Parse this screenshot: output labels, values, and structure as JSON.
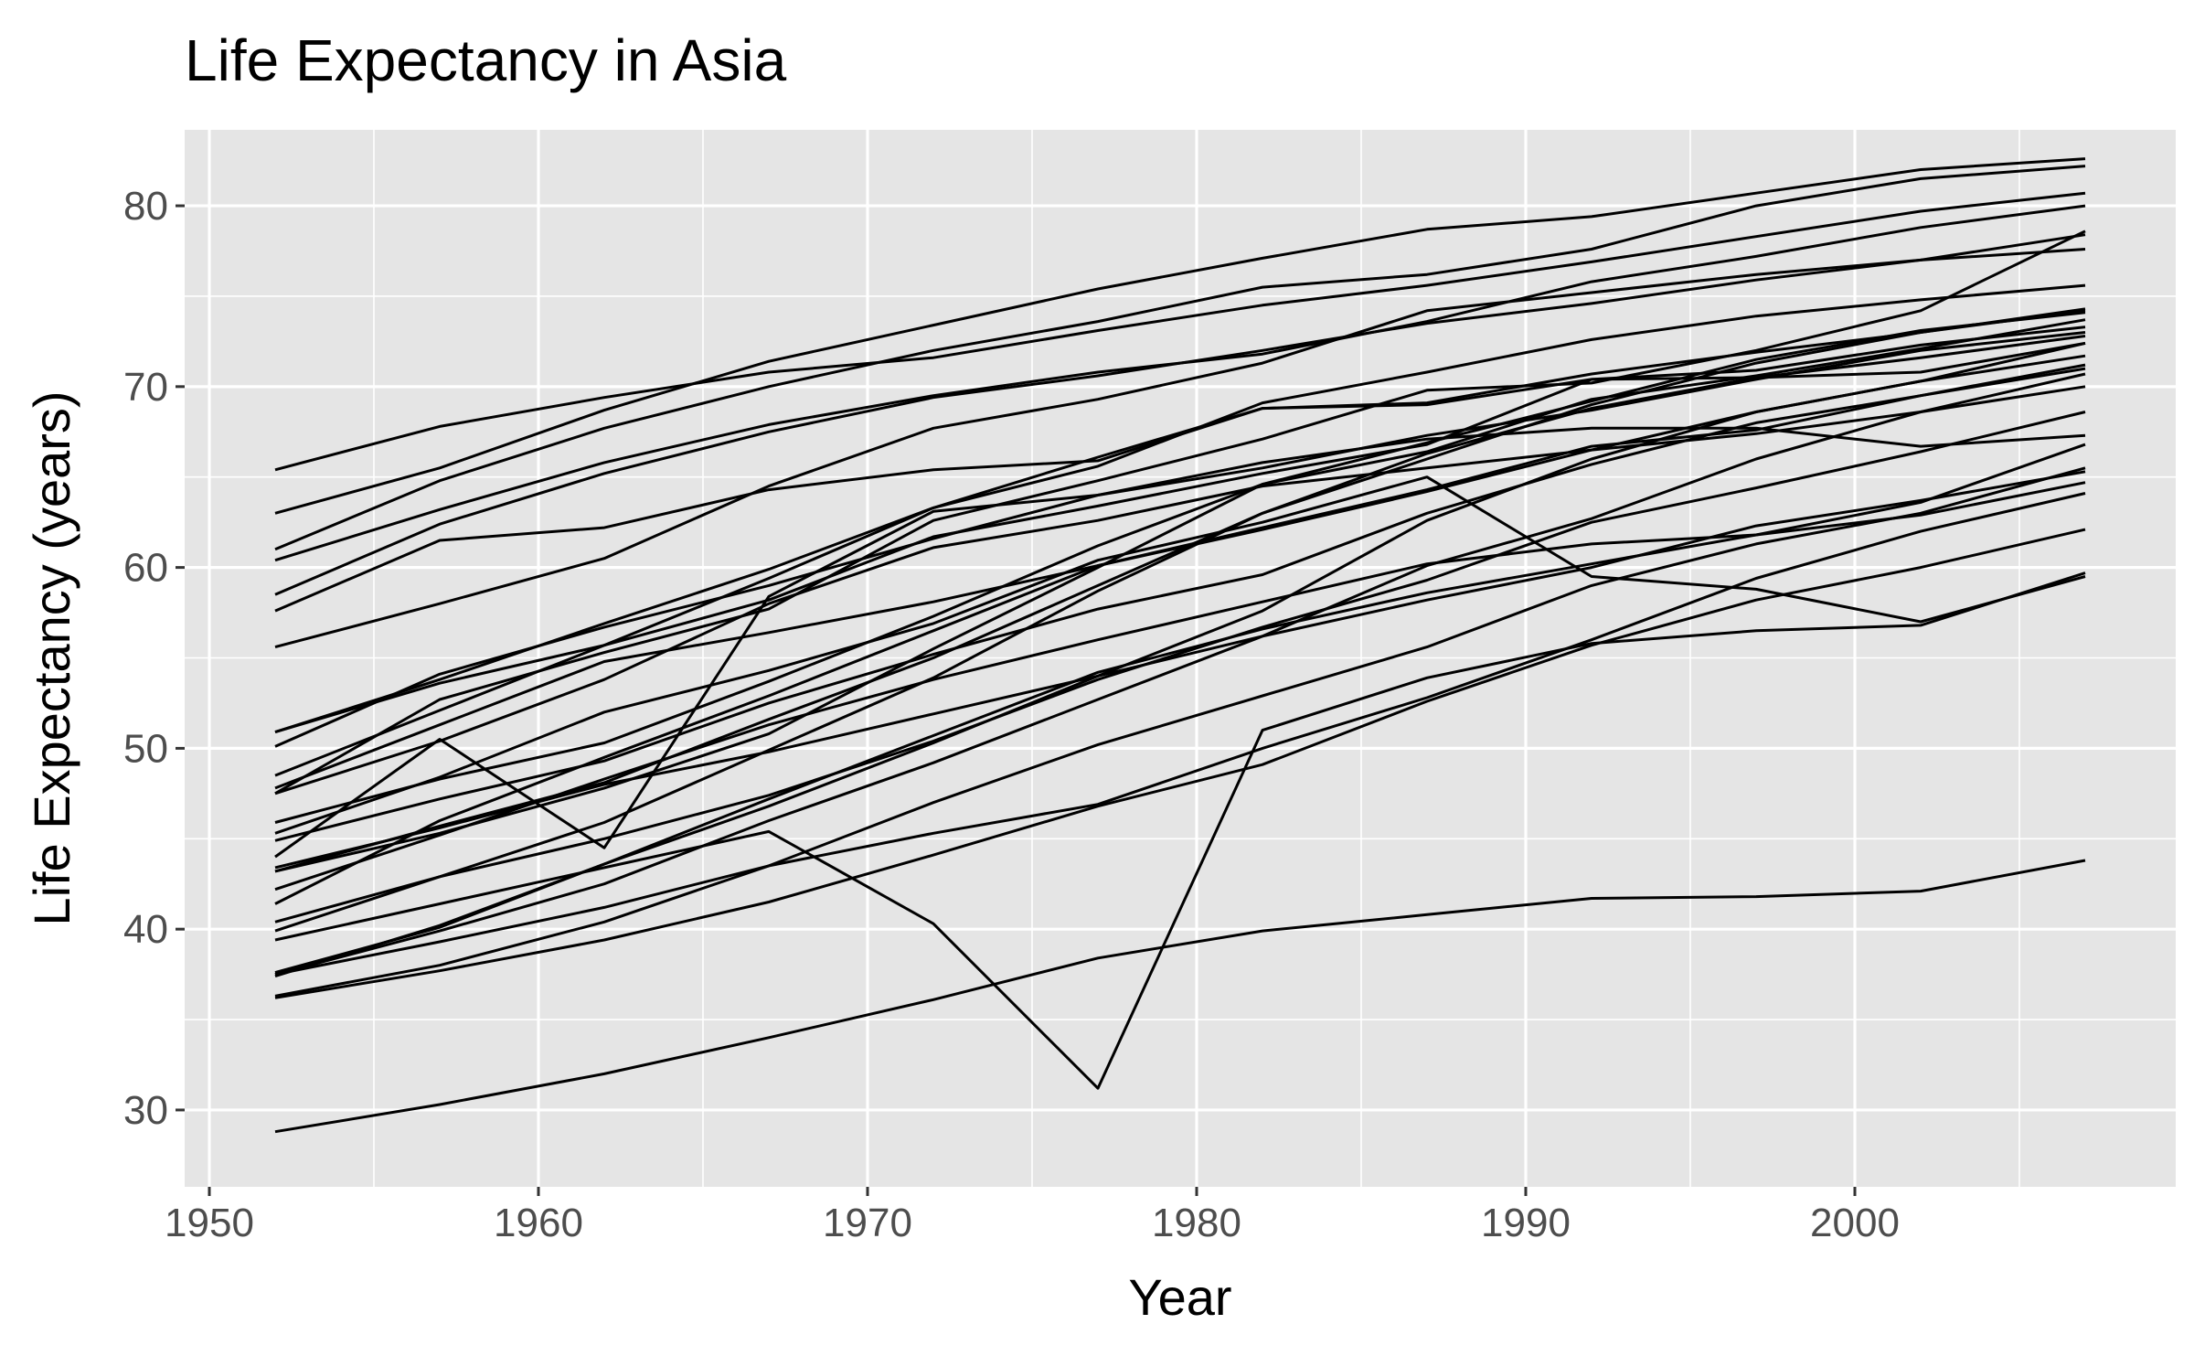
{
  "chart_data": {
    "type": "line",
    "title": "Life Expectancy in Asia",
    "xlabel": "Year",
    "ylabel": "Life Expectancy (years)",
    "xlim": [
      1949.25,
      2009.75
    ],
    "ylim": [
      25.75,
      84.2
    ],
    "x_ticks": [
      1950,
      1960,
      1970,
      1980,
      1990,
      2000
    ],
    "x_tick_labels": [
      "1950",
      "1960",
      "1970",
      "1980",
      "1990",
      "2000"
    ],
    "y_ticks": [
      30,
      40,
      50,
      60,
      70,
      80
    ],
    "y_tick_labels": [
      "30",
      "40",
      "50",
      "60",
      "70",
      "80"
    ],
    "grid": true,
    "legend": "none",
    "colors": {
      "panel_background": "#e5e5e5",
      "grid": "#ffffff",
      "line": "#000000",
      "tick_label": "#4d4d4d",
      "tick_mark": "#333333"
    },
    "x": [
      1952,
      1957,
      1962,
      1967,
      1972,
      1977,
      1982,
      1987,
      1992,
      1997,
      2002,
      2007
    ],
    "series": [
      {
        "values": [
          28.8,
          30.3,
          32.0,
          34.0,
          36.1,
          38.4,
          39.9,
          40.8,
          41.7,
          41.8,
          42.1,
          43.8
        ]
      },
      {
        "values": [
          50.9,
          53.8,
          56.9,
          59.9,
          63.3,
          65.6,
          69.1,
          70.8,
          72.6,
          73.9,
          74.8,
          75.6
        ]
      },
      {
        "values": [
          37.5,
          39.3,
          41.2,
          43.5,
          45.3,
          46.9,
          50.0,
          52.8,
          56.0,
          59.4,
          62.0,
          64.1
        ]
      },
      {
        "values": [
          39.4,
          41.4,
          43.4,
          45.4,
          40.3,
          31.2,
          51.0,
          53.9,
          55.8,
          56.5,
          56.8,
          59.7
        ]
      },
      {
        "values": [
          44.0,
          50.5,
          44.5,
          58.4,
          63.1,
          64.0,
          65.5,
          67.3,
          68.7,
          70.4,
          72.0,
          73.0
        ]
      },
      {
        "values": [
          61.0,
          64.8,
          67.7,
          70.0,
          72.0,
          73.6,
          75.5,
          76.2,
          77.6,
          80.0,
          81.5,
          82.2
        ]
      },
      {
        "values": [
          37.4,
          40.2,
          43.6,
          47.2,
          50.7,
          54.2,
          56.6,
          58.6,
          60.2,
          61.8,
          62.9,
          64.7
        ]
      },
      {
        "values": [
          37.5,
          39.9,
          42.5,
          46.0,
          49.2,
          52.7,
          56.2,
          60.1,
          62.7,
          66.0,
          68.6,
          70.7
        ]
      },
      {
        "values": [
          44.9,
          47.2,
          49.3,
          52.5,
          55.2,
          57.7,
          59.6,
          63.0,
          65.7,
          68.0,
          69.5,
          71.0
        ]
      },
      {
        "values": [
          45.3,
          48.4,
          52.0,
          54.3,
          56.9,
          60.4,
          62.5,
          65.0,
          59.5,
          58.8,
          57.0,
          59.5
        ]
      },
      {
        "values": [
          65.4,
          67.8,
          69.4,
          70.8,
          71.6,
          73.1,
          74.5,
          75.6,
          76.9,
          78.3,
          79.7,
          80.7
        ]
      },
      {
        "values": [
          63.0,
          65.5,
          68.7,
          71.4,
          73.4,
          75.4,
          77.1,
          78.7,
          79.4,
          80.7,
          82.0,
          82.6
        ]
      },
      {
        "values": [
          43.2,
          45.7,
          48.1,
          51.6,
          55.0,
          59.0,
          63.0,
          66.0,
          69.0,
          71.3,
          73.0,
          74.3
        ]
      },
      {
        "values": [
          50.1,
          54.1,
          56.7,
          59.0,
          61.6,
          64.0,
          65.8,
          67.1,
          67.7,
          67.7,
          66.7,
          67.3
        ]
      },
      {
        "values": [
          47.5,
          52.7,
          55.3,
          57.7,
          62.6,
          64.8,
          67.1,
          69.8,
          70.2,
          72.0,
          74.2,
          78.6
        ]
      },
      {
        "values": [
          55.6,
          58.0,
          60.5,
          64.5,
          67.7,
          69.3,
          71.3,
          74.2,
          75.2,
          76.2,
          77.0,
          77.6
        ]
      },
      {
        "values": [
          48.5,
          52.1,
          55.7,
          59.4,
          63.3,
          66.1,
          68.8,
          69.1,
          70.7,
          71.9,
          73.0,
          74.2
        ]
      },
      {
        "values": [
          42.2,
          45.2,
          48.3,
          51.3,
          53.8,
          56.0,
          58.1,
          60.2,
          61.3,
          61.8,
          63.6,
          66.8
        ]
      },
      {
        "values": [
          36.3,
          38.0,
          40.4,
          43.5,
          47.0,
          50.2,
          52.9,
          55.6,
          59.0,
          61.3,
          63.0,
          65.5
        ]
      },
      {
        "values": [
          36.2,
          37.7,
          39.4,
          41.5,
          44.1,
          46.8,
          49.1,
          52.6,
          55.7,
          58.2,
          60.0,
          62.1
        ]
      },
      {
        "values": [
          37.6,
          40.1,
          43.6,
          46.8,
          50.3,
          54.0,
          57.6,
          62.6,
          66.0,
          68.6,
          70.3,
          72.4
        ]
      },
      {
        "values": [
          43.4,
          45.6,
          48.0,
          49.8,
          51.9,
          54.0,
          56.2,
          58.2,
          60.0,
          62.3,
          63.7,
          65.3
        ]
      },
      {
        "values": [
          47.8,
          51.3,
          54.8,
          56.4,
          58.1,
          60.1,
          62.1,
          64.2,
          66.5,
          68.6,
          70.3,
          71.7
        ]
      },
      {
        "values": [
          39.9,
          42.9,
          45.9,
          49.9,
          53.9,
          58.7,
          63.0,
          66.3,
          68.8,
          70.5,
          71.6,
          72.8
        ]
      },
      {
        "values": [
          60.4,
          63.2,
          65.8,
          67.9,
          69.5,
          70.8,
          71.8,
          73.6,
          75.8,
          77.2,
          78.8,
          80.0
        ]
      },
      {
        "values": [
          57.6,
          61.5,
          62.2,
          64.3,
          65.4,
          65.9,
          68.8,
          69.0,
          70.4,
          70.5,
          70.8,
          72.4
        ]
      },
      {
        "values": [
          45.9,
          48.3,
          50.3,
          53.7,
          57.3,
          61.2,
          64.6,
          66.9,
          69.2,
          71.5,
          73.1,
          74.1
        ]
      },
      {
        "values": [
          58.5,
          62.4,
          65.2,
          67.5,
          69.4,
          70.6,
          72.0,
          73.5,
          74.6,
          75.9,
          77.0,
          78.4
        ]
      },
      {
        "values": [
          40.4,
          42.9,
          45.0,
          47.4,
          50.4,
          53.8,
          56.7,
          59.3,
          62.5,
          64.4,
          66.4,
          68.6
        ]
      },
      {
        "values": [
          50.9,
          53.6,
          55.7,
          58.2,
          61.7,
          63.4,
          65.2,
          66.8,
          70.4,
          70.9,
          72.3,
          73.3
        ]
      },
      {
        "values": [
          43.2,
          45.3,
          47.8,
          50.8,
          55.5,
          60.0,
          64.6,
          66.4,
          69.3,
          70.6,
          72.1,
          73.7
        ]
      },
      {
        "values": [
          47.5,
          50.4,
          53.8,
          58.0,
          61.1,
          62.6,
          64.5,
          65.5,
          66.5,
          67.4,
          68.6,
          70.0
        ]
      },
      {
        "values": [
          41.4,
          46.0,
          49.5,
          52.9,
          56.5,
          60.1,
          62.2,
          64.3,
          66.7,
          67.6,
          69.5,
          71.2
        ]
      }
    ]
  }
}
